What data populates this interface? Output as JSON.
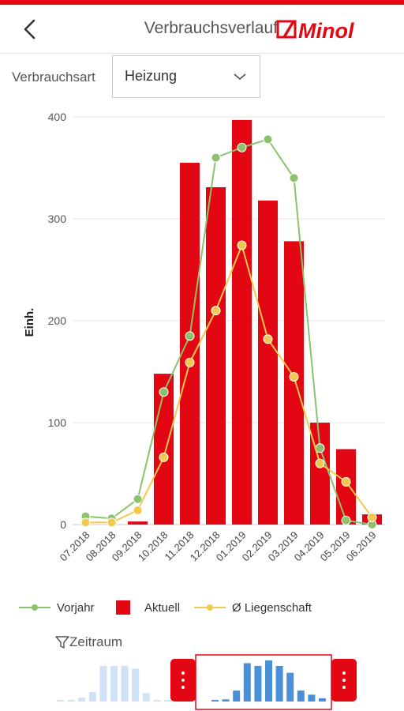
{
  "header": {
    "title": "Verbrauchsverlauf",
    "logo_text": "Minol"
  },
  "filter": {
    "label": "Verbrauchsart",
    "selected": "Heizung"
  },
  "chart_data": {
    "type": "bar",
    "categories": [
      "07.2018",
      "08.2018",
      "09.2018",
      "10.2018",
      "11.2018",
      "12.2018",
      "01.2019",
      "02.2019",
      "03.2019",
      "04.2019",
      "05.2019",
      "06.2019"
    ],
    "ylabel": "Einh.",
    "ylim": [
      0,
      400
    ],
    "yticks": [
      0,
      100,
      200,
      300,
      400
    ],
    "series": [
      {
        "name": "Vorjahr",
        "kind": "line",
        "color": "#8cc26b",
        "values": [
          8,
          6,
          25,
          130,
          185,
          360,
          370,
          378,
          340,
          75,
          4,
          0
        ]
      },
      {
        "name": "Aktuell",
        "kind": "bar",
        "color": "#e30613",
        "values": [
          0,
          0,
          3,
          148,
          355,
          331,
          397,
          318,
          278,
          100,
          74,
          10
        ]
      },
      {
        "name": "Ø Liegenschaft",
        "kind": "line",
        "color": "#f2c94c",
        "values": [
          2,
          2,
          14,
          66,
          159,
          210,
          274,
          182,
          145,
          60,
          42,
          7
        ]
      }
    ]
  },
  "legend": {
    "vorjahr": "Vorjahr",
    "aktuell": "Aktuell",
    "liegenschaft": "Ø Liegenschaft"
  },
  "zeitraum": {
    "label": "Zeitraum",
    "overview_values": [
      2,
      2,
      14,
      35,
      130,
      130,
      130,
      120,
      30,
      0,
      0,
      2,
      8,
      40,
      140,
      130,
      150,
      130,
      105,
      40,
      25,
      12
    ]
  },
  "colors": {
    "accent": "#e30613",
    "vorjahr": "#8cc26b",
    "liegenschaft": "#f2c94c",
    "nav_past": "#cfe2f7",
    "nav_current": "#4a90d9"
  }
}
